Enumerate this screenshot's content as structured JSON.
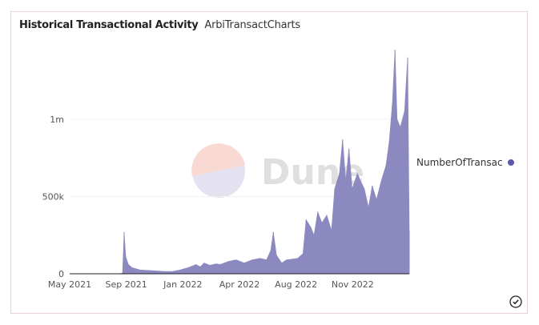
{
  "header": {
    "title": "Historical Transactional Activity",
    "subtitle": "ArbiTransactCharts"
  },
  "legend": {
    "label": "NumberOfTransac",
    "color": "#5e58a8"
  },
  "watermark": "Dune",
  "chart_data": {
    "type": "area",
    "title": "Historical Transactional Activity",
    "xlabel": "",
    "ylabel": "",
    "x_unit": "days since 2021-05-01",
    "xlim": [
      0,
      642
    ],
    "ylim": [
      0,
      1500000
    ],
    "x_ticks": [
      {
        "label": "May 2021",
        "x": 0
      },
      {
        "label": "Sep 2021",
        "x": 107
      },
      {
        "label": "Jan 2022",
        "x": 214
      },
      {
        "label": "Apr 2022",
        "x": 321
      },
      {
        "label": "Aug 2022",
        "x": 428
      },
      {
        "label": "Nov 2022",
        "x": 535
      }
    ],
    "y_ticks": [
      {
        "label": "0",
        "y": 0
      },
      {
        "label": "500k",
        "y": 500000
      },
      {
        "label": "1m",
        "y": 1000000
      }
    ],
    "grid": true,
    "legend_position": "right",
    "series": [
      {
        "name": "NumberOfTransac",
        "color": "#8c89c0",
        "points": [
          [
            0,
            0
          ],
          [
            95,
            0
          ],
          [
            100,
            5000
          ],
          [
            103,
            270000
          ],
          [
            106,
            110000
          ],
          [
            111,
            60000
          ],
          [
            118,
            40000
          ],
          [
            133,
            25000
          ],
          [
            156,
            20000
          ],
          [
            179,
            15000
          ],
          [
            194,
            15000
          ],
          [
            209,
            25000
          ],
          [
            224,
            40000
          ],
          [
            239,
            60000
          ],
          [
            247,
            45000
          ],
          [
            254,
            70000
          ],
          [
            265,
            55000
          ],
          [
            277,
            65000
          ],
          [
            285,
            60000
          ],
          [
            300,
            80000
          ],
          [
            315,
            90000
          ],
          [
            330,
            70000
          ],
          [
            345,
            90000
          ],
          [
            360,
            100000
          ],
          [
            372,
            90000
          ],
          [
            380,
            150000
          ],
          [
            385,
            270000
          ],
          [
            391,
            120000
          ],
          [
            401,
            70000
          ],
          [
            410,
            90000
          ],
          [
            421,
            95000
          ],
          [
            431,
            100000
          ],
          [
            441,
            130000
          ],
          [
            447,
            350000
          ],
          [
            456,
            300000
          ],
          [
            462,
            250000
          ],
          [
            469,
            400000
          ],
          [
            477,
            330000
          ],
          [
            486,
            380000
          ],
          [
            495,
            280000
          ],
          [
            501,
            550000
          ],
          [
            510,
            650000
          ],
          [
            516,
            870000
          ],
          [
            522,
            600000
          ],
          [
            528,
            810000
          ],
          [
            534,
            550000
          ],
          [
            544,
            650000
          ],
          [
            550,
            600000
          ],
          [
            557,
            550000
          ],
          [
            565,
            430000
          ],
          [
            572,
            570000
          ],
          [
            580,
            480000
          ],
          [
            589,
            600000
          ],
          [
            598,
            700000
          ],
          [
            604,
            850000
          ],
          [
            610,
            1100000
          ],
          [
            615,
            1450000
          ],
          [
            619,
            1000000
          ],
          [
            625,
            950000
          ],
          [
            633,
            1050000
          ],
          [
            639,
            1400000
          ],
          [
            642,
            280000
          ]
        ]
      }
    ]
  }
}
